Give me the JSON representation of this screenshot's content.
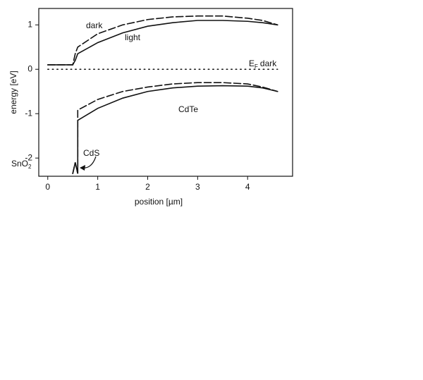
{
  "chart_data": {
    "type": "line",
    "x_label": "position [µm]",
    "y_label": "energy [eV]",
    "x": [
      0,
      0.45,
      0.5,
      0.55,
      0.6,
      0.6,
      1,
      1.5,
      2,
      2.5,
      3,
      3.5,
      4,
      4.3,
      4.6
    ],
    "series": [
      {
        "color": "#111111",
        "dash": "dashed",
        "values": [
          0.1,
          0.1,
          0.1,
          0.35,
          0.5,
          0.5,
          0.8,
          1.0,
          1.12,
          1.18,
          1.2,
          1.2,
          1.15,
          1.1,
          1.0
        ]
      },
      {
        "color": "#111111",
        "dash": "solid",
        "values": [
          0.1,
          0.1,
          0.1,
          0.2,
          0.35,
          0.35,
          0.6,
          0.82,
          0.97,
          1.05,
          1.1,
          1.1,
          1.08,
          1.05,
          1.0
        ]
      },
      {
        "color": "#111111",
        "dash": "dashed",
        "values": [
          null,
          null,
          -2.35,
          -2.1,
          -2.35,
          -0.92,
          -0.68,
          -0.5,
          -0.4,
          -0.33,
          -0.3,
          -0.3,
          -0.33,
          -0.4,
          -0.5
        ]
      },
      {
        "color": "#111111",
        "dash": "solid",
        "values": [
          null,
          null,
          -2.35,
          -2.1,
          -2.35,
          -1.15,
          -0.88,
          -0.65,
          -0.5,
          -0.42,
          -0.38,
          -0.37,
          -0.38,
          -0.42,
          -0.5
        ]
      },
      {
        "color": "#111111",
        "dash": "dotted",
        "values": [
          0,
          0,
          0,
          0,
          0,
          0,
          0,
          0,
          0,
          0,
          0,
          0,
          0,
          0,
          0
        ]
      }
    ],
    "annotations": [
      "dark",
      "light",
      "CdTe",
      "CdS"
    ],
    "ef_label": [
      "E",
      "F",
      "dark"
    ],
    "sno2_label": [
      "SnO",
      "2"
    ],
    "xlim": [
      -0.18,
      4.9
    ],
    "ylim": [
      -2.41,
      1.37
    ],
    "xticks": [
      0,
      1,
      2,
      3,
      4
    ],
    "yticks": [
      -2,
      -1,
      0,
      1
    ]
  }
}
